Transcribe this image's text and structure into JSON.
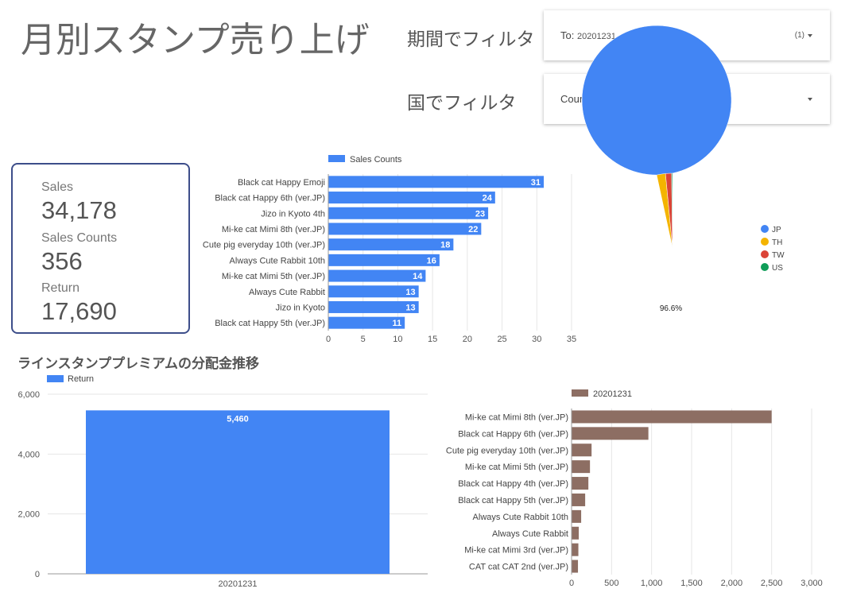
{
  "header": {
    "title": "月別スタンプ売り上げ"
  },
  "filters": {
    "period": {
      "label": "期間でフィルタ",
      "value_prefix": "To:",
      "value": "20201231",
      "count": "(1)"
    },
    "country": {
      "label": "国でフィルタ",
      "value": "Country of Sale"
    }
  },
  "scorecard": {
    "sales_label": "Sales",
    "sales_value": "34,178",
    "counts_label": "Sales Counts",
    "counts_value": "356",
    "return_label": "Return",
    "return_value": "17,690"
  },
  "section": {
    "title": "ラインスタンププレミアムの分配金推移"
  },
  "colors": {
    "blue": "#4285f4",
    "brown": "#8d6e63",
    "yellow": "#f4b400",
    "red": "#db4437",
    "green": "#0f9d58",
    "border": "#3d4e8a"
  },
  "chart_data": [
    {
      "type": "bar",
      "orientation": "horizontal",
      "legend": "Sales Counts",
      "categories": [
        "Black cat Happy Emoji",
        "Black cat Happy 6th (ver.JP)",
        "Jizo in Kyoto 4th",
        "Mi-ke cat Mimi 8th (ver.JP)",
        "Cute pig everyday 10th (ver.JP)",
        "Always Cute Rabbit 10th",
        "Mi-ke cat Mimi 5th (ver.JP)",
        "Always Cute Rabbit",
        "Jizo in Kyoto",
        "Black cat Happy 5th (ver.JP)"
      ],
      "values": [
        31,
        24,
        23,
        22,
        18,
        16,
        14,
        13,
        13,
        11
      ],
      "xlim": [
        0,
        35
      ],
      "ticks": [
        0,
        5,
        10,
        15,
        20,
        25,
        30,
        35
      ],
      "tick_labels": [
        "0",
        "5",
        "10",
        "15",
        "20",
        "25",
        "30",
        "35"
      ],
      "color": "#4285f4"
    },
    {
      "type": "pie",
      "labels": [
        "JP",
        "TH",
        "TW",
        "US"
      ],
      "values": [
        96.6,
        1.9,
        1.3,
        0.2
      ],
      "colors": [
        "#4285f4",
        "#f4b400",
        "#db4437",
        "#0f9d58"
      ],
      "slice_label": "96.6%",
      "legend_position": "right"
    },
    {
      "type": "bar",
      "orientation": "vertical",
      "legend": "Return",
      "categories": [
        "20201231"
      ],
      "values": [
        5460
      ],
      "value_labels": [
        "5,460"
      ],
      "ylim": [
        0,
        6000
      ],
      "ticks": [
        0,
        2000,
        4000,
        6000
      ],
      "tick_labels": [
        "0",
        "2,000",
        "4,000",
        "6,000"
      ],
      "color": "#4285f4"
    },
    {
      "type": "bar",
      "orientation": "horizontal",
      "legend": "20201231",
      "categories": [
        "Mi-ke cat Mimi 8th (ver.JP)",
        "Black cat Happy 6th (ver.JP)",
        "Cute pig everyday 10th (ver.JP)",
        "Mi-ke cat Mimi 5th (ver.JP)",
        "Black cat Happy 4th (ver.JP)",
        "Black cat Happy 5th (ver.JP)",
        "Always Cute Rabbit 10th",
        "Always Cute Rabbit",
        "Mi-ke cat Mimi 3rd (ver.JP)",
        "CAT cat CAT 2nd (ver.JP)"
      ],
      "values": [
        2500,
        960,
        250,
        230,
        210,
        170,
        120,
        90,
        85,
        80
      ],
      "xlim": [
        0,
        3000
      ],
      "ticks": [
        0,
        500,
        1000,
        1500,
        2000,
        2500,
        3000
      ],
      "tick_labels": [
        "0",
        "500",
        "1,000",
        "1,500",
        "2,000",
        "2,500",
        "3,000"
      ],
      "color": "#8d6e63"
    }
  ]
}
